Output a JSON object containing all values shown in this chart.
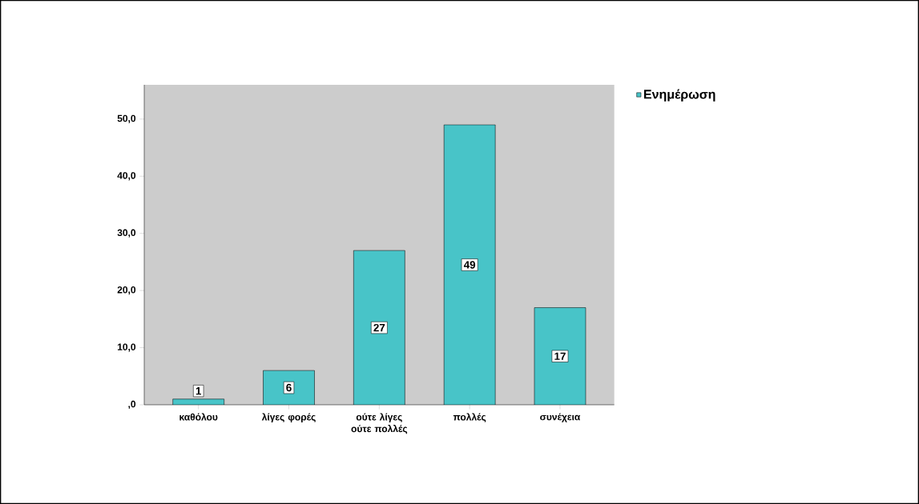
{
  "chart_data": {
    "type": "bar",
    "categories": [
      "καθόλου",
      "λίγες φορές",
      "ούτε λίγες ούτε πολλές",
      "πολλές",
      "συνέχεια"
    ],
    "series": [
      {
        "name": "Ενημέρωση",
        "color": "#48c4c8",
        "values": [
          1,
          6,
          27,
          49,
          17
        ]
      }
    ],
    "ylim": [
      0,
      56
    ],
    "yticks": [
      {
        "value": 0,
        "label": ",0"
      },
      {
        "value": 10,
        "label": "10,0"
      },
      {
        "value": 20,
        "label": "20,0"
      },
      {
        "value": 30,
        "label": "30,0"
      },
      {
        "value": 40,
        "label": "40,0"
      },
      {
        "value": 50,
        "label": "50,0"
      }
    ],
    "data_labels": true,
    "legend": "top right",
    "grid": false
  }
}
